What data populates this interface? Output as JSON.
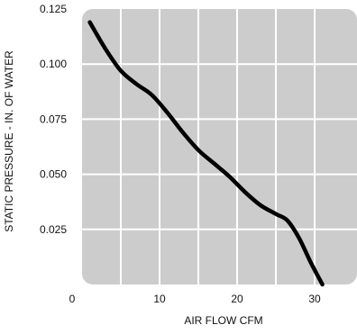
{
  "chart_data": {
    "type": "line",
    "title": "",
    "xlabel": "AIR FLOW CFM",
    "ylabel": "STATIC PRESSURE - IN. OF WATER",
    "xlim": [
      0,
      35
    ],
    "ylim": [
      0,
      0.125
    ],
    "grid": true,
    "x_ticks": [
      {
        "value": 0,
        "label": "0"
      },
      {
        "value": 10,
        "label": "10"
      },
      {
        "value": 20,
        "label": "20"
      },
      {
        "value": 30,
        "label": "30"
      }
    ],
    "y_ticks": [
      {
        "value": 0.025,
        "label": "0.025"
      },
      {
        "value": 0.05,
        "label": "0.050"
      },
      {
        "value": 0.075,
        "label": "0.075"
      },
      {
        "value": 0.1,
        "label": "0.100"
      },
      {
        "value": 0.125,
        "label": "0.125"
      }
    ],
    "x_grid": [
      5,
      10,
      15,
      20,
      25,
      30
    ],
    "y_grid": [
      0.025,
      0.05,
      0.075,
      0.1
    ],
    "colors": {
      "plot_background": "#cccccc",
      "grid": "#ffffff",
      "line": "#000000"
    },
    "series": [
      {
        "x": [
          1,
          3,
          5,
          7,
          9,
          11,
          13,
          15,
          17,
          19,
          21,
          23,
          25,
          26.5,
          28,
          29.5,
          31
        ],
        "y": [
          0.119,
          0.107,
          0.097,
          0.091,
          0.086,
          0.078,
          0.069,
          0.061,
          0.055,
          0.049,
          0.042,
          0.036,
          0.032,
          0.029,
          0.021,
          0.01,
          0.0
        ]
      }
    ]
  }
}
